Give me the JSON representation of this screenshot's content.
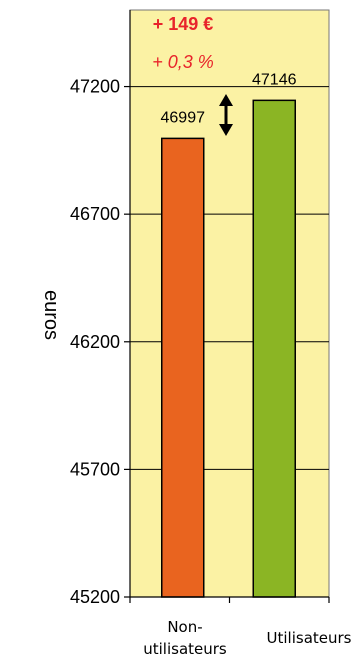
{
  "chart_data": {
    "type": "bar",
    "categories": [
      "Non-\nutilisateurs",
      "Utilisateurs"
    ],
    "values": [
      46997,
      47146
    ],
    "data_labels": [
      "46997",
      "47146"
    ],
    "ylabel": "euros",
    "ylim": [
      45200,
      47500
    ],
    "yticks": [
      45200,
      45700,
      46200,
      46700,
      47200
    ],
    "grid": true,
    "annotations": {
      "difference": "+ 149 €",
      "percent": "+ 0,3 %"
    },
    "colors": {
      "plot_background": "#fbf2a4",
      "bars": [
        "#e9641f",
        "#8bb524"
      ],
      "annotation": "#e8242b"
    }
  }
}
